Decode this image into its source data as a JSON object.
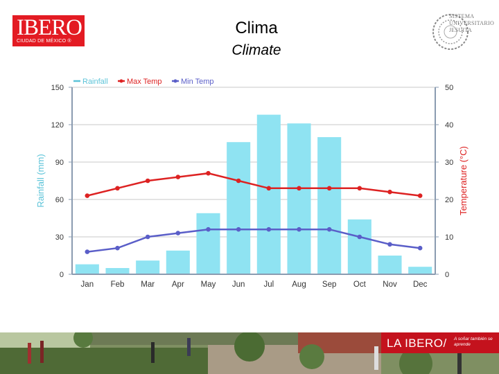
{
  "header": {
    "logo_main": "IBERO",
    "logo_sub": "CIUDAD DE MÉXICO ®",
    "title_es": "Clima",
    "title_en": "Climate",
    "seal_lines": [
      "SISTEMA",
      "UNIVERSITARIO",
      "JESUITA"
    ]
  },
  "colors": {
    "rainfall": "#8fe3f2",
    "rainfall_text": "#5bc3d8",
    "max_temp": "#dd2222",
    "min_temp": "#5a5ec8",
    "axis": "#8a9bb0",
    "grid": "#c9c9c9",
    "tick_text": "#333333",
    "brand_red": "#e31b23"
  },
  "chart_data": {
    "type": "bar+line",
    "categories": [
      "Jan",
      "Feb",
      "Mar",
      "Apr",
      "May",
      "Jun",
      "Jul",
      "Aug",
      "Sep",
      "Oct",
      "Nov",
      "Dec"
    ],
    "series": [
      {
        "name": "Rainfall",
        "kind": "bar",
        "axis": "left",
        "values": [
          8,
          5,
          11,
          19,
          49,
          106,
          128,
          121,
          110,
          44,
          15,
          6
        ]
      },
      {
        "name": "Max Temp",
        "kind": "line",
        "axis": "right",
        "values": [
          21,
          23,
          25,
          26,
          27,
          25,
          23,
          23,
          23,
          23,
          22,
          21
        ]
      },
      {
        "name": "Min Temp",
        "kind": "line",
        "axis": "right",
        "values": [
          6,
          7,
          10,
          11,
          12,
          12,
          12,
          12,
          12,
          10,
          8,
          7
        ]
      }
    ],
    "ylabel_left": "Rainfall (mm)",
    "ylabel_right": "Temperature (°C)",
    "ylim_left": [
      0,
      150
    ],
    "yticks_left": [
      0,
      30,
      60,
      90,
      120,
      150
    ],
    "ylim_right": [
      0,
      50
    ],
    "yticks_right": [
      0,
      10,
      20,
      30,
      40,
      50
    ],
    "grid": true,
    "legend": "top-left"
  },
  "footer": {
    "banner_main": "LA IBERO/",
    "banner_sub": "A soñar también se aprende"
  }
}
